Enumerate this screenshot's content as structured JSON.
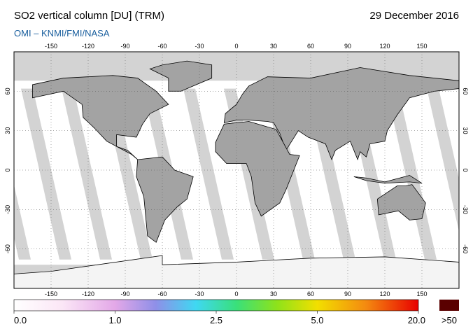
{
  "header": {
    "title": "SO2 vertical column [DU] (TRM)",
    "date": "29 December 2016",
    "subtitle": "OMI – KNMI/FMI/NASA"
  },
  "map": {
    "lon_ticks": [
      -150,
      -120,
      -90,
      -60,
      -30,
      0,
      30,
      60,
      90,
      120,
      150
    ],
    "lat_ticks": [
      60,
      30,
      0,
      -30,
      -60
    ]
  },
  "colorbar": {
    "ticks": [
      {
        "value": 0,
        "label": "0.0"
      },
      {
        "value": 1,
        "label": "1.0"
      },
      {
        "value": 2.5,
        "label": "2.5"
      },
      {
        "value": 5,
        "label": "5.0"
      },
      {
        "value": 20,
        "label": "20.0"
      }
    ],
    "overflow_label": ">50"
  }
}
